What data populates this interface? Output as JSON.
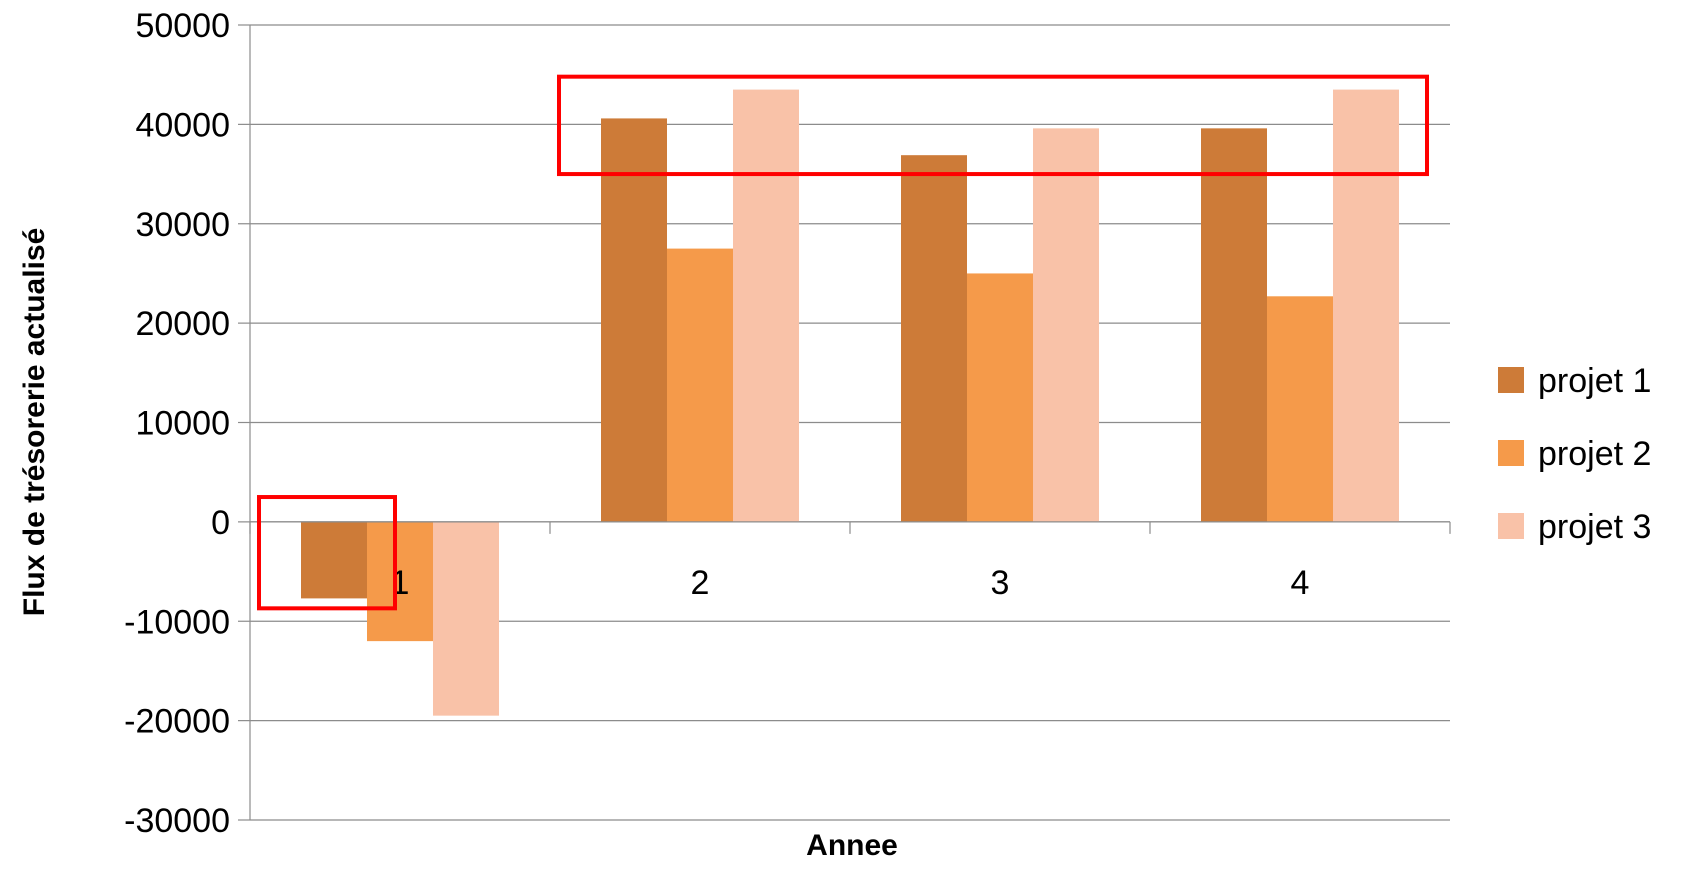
{
  "chart_data": {
    "type": "bar",
    "title": "",
    "xlabel": "Annee",
    "ylabel": "Flux de trésorerie actualisé",
    "categories": [
      "1",
      "2",
      "3",
      "4"
    ],
    "series": [
      {
        "name": "projet 1",
        "color": "#CD7B38",
        "values": [
          -7700,
          40600,
          36900,
          39600
        ]
      },
      {
        "name": "projet 2",
        "color": "#F59A4A",
        "values": [
          -12000,
          27500,
          25000,
          22700
        ]
      },
      {
        "name": "projet 3",
        "color": "#F9C2A8",
        "values": [
          -19500,
          43500,
          39600,
          43500
        ]
      }
    ],
    "ylim": [
      -30000,
      50000
    ],
    "ytick_step": 10000,
    "yticks": [
      "-30000",
      "-20000",
      "-10000",
      "0",
      "10000",
      "20000",
      "30000",
      "40000",
      "50000"
    ],
    "grid": true,
    "legend_position": "right",
    "annotations": [
      {
        "type": "highlight-box",
        "color": "#FF0000",
        "category_start": 0,
        "category_end": 0,
        "series_start": 0,
        "series_end": 0,
        "y_from": -8700,
        "y_to": 2500
      },
      {
        "type": "highlight-box",
        "color": "#FF0000",
        "category_start": 1,
        "category_end": 3,
        "series_start": 0,
        "series_end": 2,
        "y_from": 35000,
        "y_to": 44800
      }
    ]
  }
}
